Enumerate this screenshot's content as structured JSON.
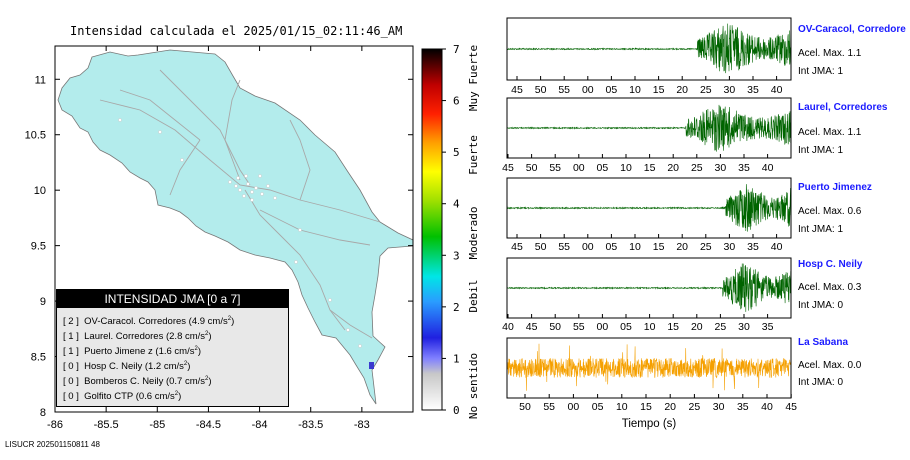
{
  "header": {
    "title": "Intensidad calculada el 2025/01/15_02:11:46_AM"
  },
  "footer": {
    "text": "LISUCR 202501150811 48"
  },
  "chart_data": [
    {
      "type": "map",
      "title": "Intensidad calculada el 2025/01/15_02:11:46_AM",
      "xticks": [
        "-86",
        "-85.5",
        "-85",
        "-84.5",
        "-84",
        "-83.5",
        "-83"
      ],
      "yticks": [
        "11",
        "10.5",
        "10",
        "9.5",
        "9",
        "8.5",
        "8"
      ],
      "xlim": [
        -86.0,
        -82.5
      ],
      "ylim": [
        8.0,
        11.3
      ],
      "land_color": "#b3ecec",
      "colorbar": {
        "ticks": [
          "0",
          "1",
          "2",
          "3",
          "4",
          "5",
          "6",
          "7"
        ],
        "labels": [
          "No sentido",
          "Debil",
          "Moderado",
          "Fuerte",
          "Muy Fuerte"
        ],
        "range": [
          0,
          7
        ]
      },
      "legend": {
        "title": "INTENSIDAD JMA [0 a 7]",
        "items": [
          {
            "int": "[ 2 ]",
            "name": "OV-Caracol. Corredores",
            "acc": "(4.9 cm/s",
            "sup": "2",
            "close": ")"
          },
          {
            "int": "[ 1 ]",
            "name": "Laurel. Corredores",
            "acc": "(2.8 cm/s",
            "sup": "2",
            "close": ")"
          },
          {
            "int": "[ 1 ]",
            "name": "Puerto Jimene z",
            "acc": "(1.6 cm/s",
            "sup": "2",
            "close": ")"
          },
          {
            "int": "[ 0 ]",
            "name": "Hosp C. Neily",
            "acc": "(1.2 cm/s",
            "sup": "2",
            "close": ")"
          },
          {
            "int": "[ 0 ]",
            "name": "Bomberos C. Neily",
            "acc": "(0.7 cm/s",
            "sup": "2",
            "close": ")"
          },
          {
            "int": "[ 0 ]",
            "name": "Golfito CTP",
            "acc": "(0.6 cm/s",
            "sup": "2",
            "close": ")"
          }
        ]
      }
    },
    {
      "type": "line",
      "xlabel": "Tiempo (s)",
      "panels": [
        {
          "name": "OV-Caracol, Corredore",
          "acel": "Acel. Max. 1.1",
          "int": "Int JMA: 1",
          "color": "#006400",
          "ticks": [
            "45",
            "50",
            "55",
            "00",
            "05",
            "10",
            "15",
            "20",
            "25",
            "30",
            "35",
            "40"
          ],
          "onset_fraction": 0.67,
          "amplitude": 0.95,
          "noise_only": false
        },
        {
          "name": "Laurel, Corredores",
          "acel": "Acel. Max. 1.1",
          "int": "Int JMA: 1",
          "color": "#006400",
          "ticks": [
            "45",
            "50",
            "55",
            "00",
            "05",
            "10",
            "15",
            "20",
            "25",
            "30",
            "35",
            "40"
          ],
          "onset_fraction": 0.63,
          "amplitude": 0.9,
          "noise_only": false
        },
        {
          "name": "Puerto Jimenez",
          "acel": "Acel. Max. 0.6",
          "int": "Int JMA: 1",
          "color": "#006400",
          "ticks": [
            "45",
            "50",
            "55",
            "00",
            "05",
            "10",
            "15",
            "20",
            "25",
            "30",
            "35",
            "40"
          ],
          "onset_fraction": 0.77,
          "amplitude": 0.95,
          "noise_only": false
        },
        {
          "name": "Hosp C. Neily",
          "acel": "Acel. Max. 0.3",
          "int": "Int JMA: 0",
          "color": "#006400",
          "ticks": [
            "40",
            "45",
            "50",
            "55",
            "00",
            "05",
            "10",
            "15",
            "20",
            "25",
            "30",
            "35"
          ],
          "onset_fraction": 0.76,
          "amplitude": 0.95,
          "noise_only": false
        },
        {
          "name": "La Sabana",
          "acel": "Acel. Max. 0.0",
          "int": "Int JMA: 0",
          "color": "#f5a000",
          "ticks": [
            "50",
            "55",
            "00",
            "05",
            "10",
            "15",
            "20",
            "25",
            "30",
            "35",
            "40",
            "45"
          ],
          "onset_fraction": 0.0,
          "amplitude": 0.8,
          "noise_only": true
        }
      ]
    }
  ]
}
